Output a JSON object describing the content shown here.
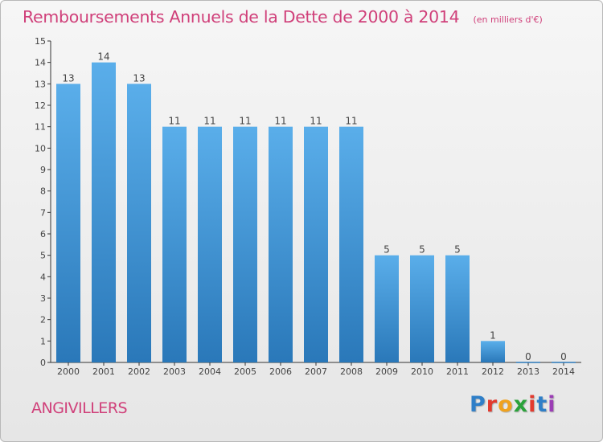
{
  "header": {
    "title": "Remboursements Annuels de la Dette de 2000 à 2014",
    "subtitle": "(en milliers d'€)"
  },
  "footer": {
    "commune": "ANGIVILLERS",
    "brand_letters": [
      "P",
      "r",
      "o",
      "x",
      "i",
      "t",
      "i"
    ],
    "brand_colors": [
      "#2f7fc8",
      "#e23a2e",
      "#f0a21e",
      "#2aa23a",
      "#e23a2e",
      "#2f7fc8",
      "#9b3db5"
    ]
  },
  "colors": {
    "bar_light": "#5aaeea",
    "bar_dark": "#2a78b9",
    "title": "#d0407a",
    "axis": "#333333"
  },
  "chart_data": {
    "type": "bar",
    "title": "Remboursements Annuels de la Dette de 2000 à 2014",
    "subtitle": "(en milliers d'€)",
    "categories": [
      "2000",
      "2001",
      "2002",
      "2003",
      "2004",
      "2005",
      "2006",
      "2007",
      "2008",
      "2009",
      "2010",
      "2011",
      "2012",
      "2013",
      "2014"
    ],
    "values": [
      13,
      14,
      13,
      11,
      11,
      11,
      11,
      11,
      11,
      5,
      5,
      5,
      1,
      0,
      0
    ],
    "data_labels": [
      "13",
      "14",
      "13",
      "11",
      "11",
      "11",
      "11",
      "11",
      "11",
      "5",
      "5",
      "5",
      "1",
      "0",
      "0"
    ],
    "y_ticks": [
      "0",
      "1",
      "2",
      "3",
      "4",
      "5",
      "6",
      "7",
      "8",
      "9",
      "10",
      "11",
      "12",
      "13",
      "14",
      "15"
    ],
    "ylim": [
      0,
      15
    ],
    "xlabel": "",
    "ylabel": "",
    "grid": false,
    "legend": "none"
  }
}
